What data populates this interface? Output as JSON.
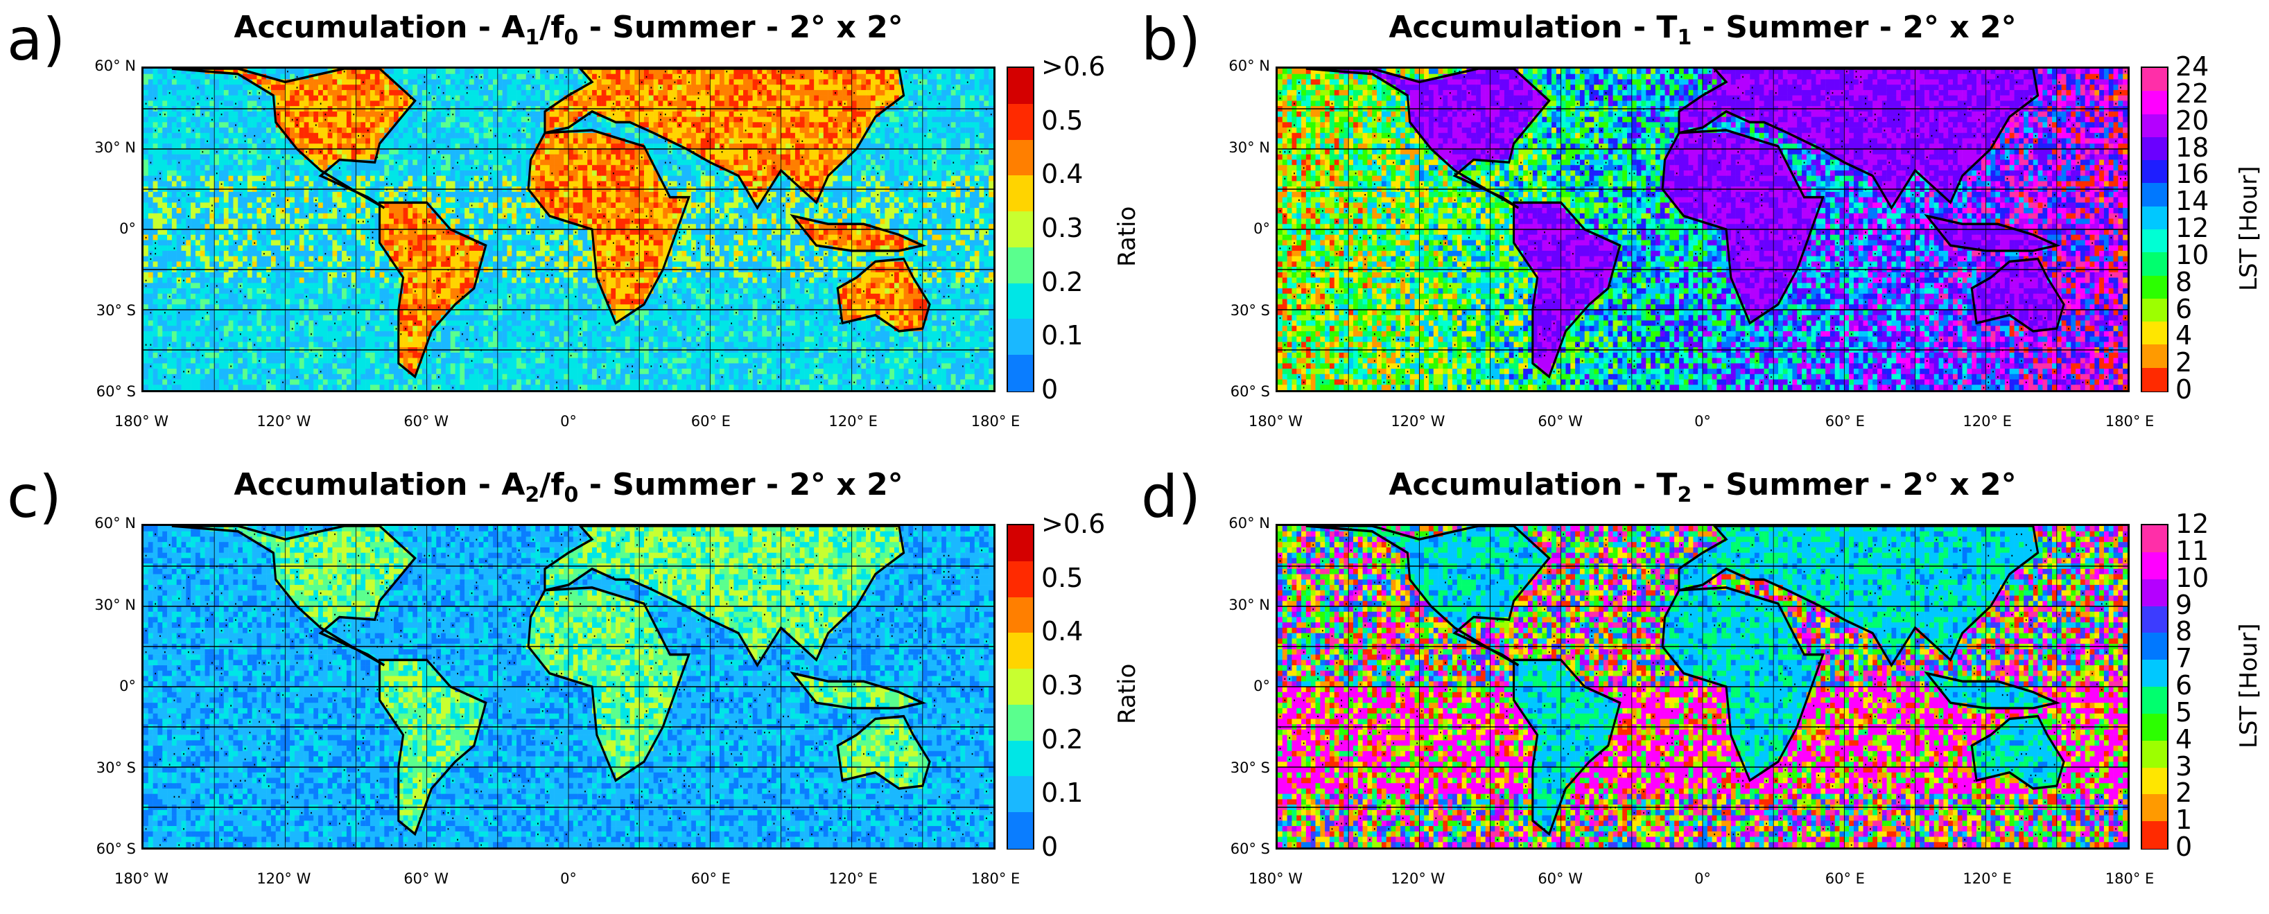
{
  "chart_data": [
    {
      "type": "heatmap",
      "panel_label": "a)",
      "title_prefix": "Accumulation - A",
      "title_sub": "1",
      "title_mid": "/f",
      "title_sub2": "0",
      "title_suffix": " - Summer - 2° x 2°",
      "colorbar_label": "Ratio",
      "colorbar_ticks": [
        ">0.6",
        "0.5",
        "0.4",
        "0.3",
        "0.2",
        "0.1",
        "0"
      ],
      "colorbar_colors": [
        "#d40000",
        "#ff2a00",
        "#ff7f00",
        "#ffd400",
        "#c8ff30",
        "#5aff8e",
        "#00e6e6",
        "#1ab8ff",
        "#0a7dff"
      ],
      "pattern_seed": 11,
      "pattern_mode": "ratio_high_land"
    },
    {
      "type": "heatmap",
      "panel_label": "b)",
      "title_prefix": "Accumulation - T",
      "title_sub": "1",
      "title_mid": "",
      "title_sub2": "",
      "title_suffix": " - Summer - 2° x 2°",
      "colorbar_label": "LST [Hour]",
      "colorbar_ticks": [
        "24",
        "22",
        "20",
        "18",
        "16",
        "14",
        "12",
        "10",
        "8",
        "6",
        "4",
        "2",
        "0"
      ],
      "colorbar_colors": [
        "#ff2fa8",
        "#ff00ff",
        "#b400ff",
        "#6a00ff",
        "#1e1eff",
        "#0078ff",
        "#00c8ff",
        "#00ffd4",
        "#00ff6e",
        "#2cff00",
        "#9dff00",
        "#ffe600",
        "#ff9a00",
        "#ff2a00"
      ],
      "pattern_seed": 23,
      "pattern_mode": "phase24"
    },
    {
      "type": "heatmap",
      "panel_label": "c)",
      "title_prefix": "Accumulation - A",
      "title_sub": "2",
      "title_mid": "/f",
      "title_sub2": "0",
      "title_suffix": " - Summer - 2° x 2°",
      "colorbar_label": "Ratio",
      "colorbar_ticks": [
        ">0.6",
        "0.5",
        "0.4",
        "0.3",
        "0.2",
        "0.1",
        "0"
      ],
      "colorbar_colors": [
        "#d40000",
        "#ff2a00",
        "#ff7f00",
        "#ffd400",
        "#c8ff30",
        "#5aff8e",
        "#00e6e6",
        "#1ab8ff",
        "#0a7dff"
      ],
      "pattern_seed": 37,
      "pattern_mode": "ratio_low"
    },
    {
      "type": "heatmap",
      "panel_label": "d)",
      "title_prefix": "Accumulation - T",
      "title_sub": "2",
      "title_mid": "",
      "title_sub2": "",
      "title_suffix": " - Summer - 2° x 2°",
      "colorbar_label": "LST [Hour]",
      "colorbar_ticks": [
        "12",
        "11",
        "10",
        "9",
        "8",
        "7",
        "6",
        "5",
        "4",
        "3",
        "2",
        "1",
        "0"
      ],
      "colorbar_colors": [
        "#ff2fa8",
        "#ff00ff",
        "#b400ff",
        "#3c3cff",
        "#0078ff",
        "#00c8ff",
        "#00ff6e",
        "#2cff00",
        "#9dff00",
        "#ffe600",
        "#ff9a00",
        "#ff2a00"
      ],
      "pattern_seed": 51,
      "pattern_mode": "phase12"
    }
  ],
  "axes": {
    "lat_ticks": [
      "60° N",
      "30° N",
      "0°",
      "30° S",
      "60° S"
    ],
    "lon_ticks": [
      "180° W",
      "120° W",
      "60° W",
      "0°",
      "60° E",
      "120° E",
      "180° E"
    ],
    "lat_values": [
      60,
      30,
      0,
      -30,
      -60
    ],
    "lon_values": [
      -180,
      -120,
      -60,
      0,
      60,
      120,
      180
    ],
    "lat_range": [
      -60,
      60
    ],
    "lon_range": [
      -180,
      180
    ],
    "grid_resolution_deg": 2
  }
}
